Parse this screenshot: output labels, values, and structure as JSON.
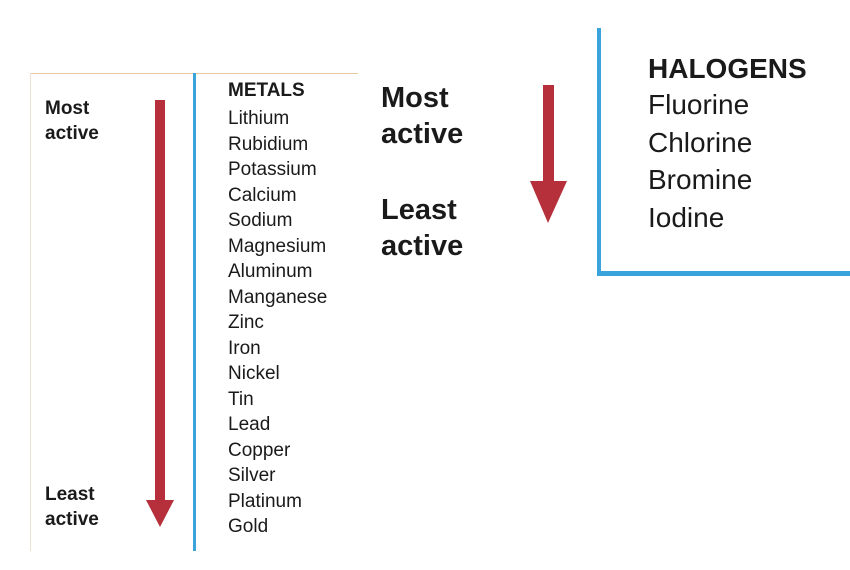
{
  "colors": {
    "arrow": "#b5303a",
    "divider": "#3aa3dc",
    "text": "#1a1a1a"
  },
  "metals": {
    "heading": "METALS",
    "most_label_line1": "Most",
    "most_label_line2": "active",
    "least_label_line1": "Least",
    "least_label_line2": "active",
    "items": [
      "Lithium",
      "Rubidium",
      "Potassium",
      "Calcium",
      "Sodium",
      "Magnesium",
      "Aluminum",
      "Manganese",
      "Zinc",
      "Iron",
      "Nickel",
      "Tin",
      "Lead",
      "Copper",
      "Silver",
      "Platinum",
      "Gold"
    ]
  },
  "halogens": {
    "heading": "HALOGENS",
    "most_label_line1": "Most",
    "most_label_line2": "active",
    "least_label_line1": "Least",
    "least_label_line2": "active",
    "items": [
      "Fluorine",
      "Chlorine",
      "Bromine",
      "Iodine"
    ]
  }
}
